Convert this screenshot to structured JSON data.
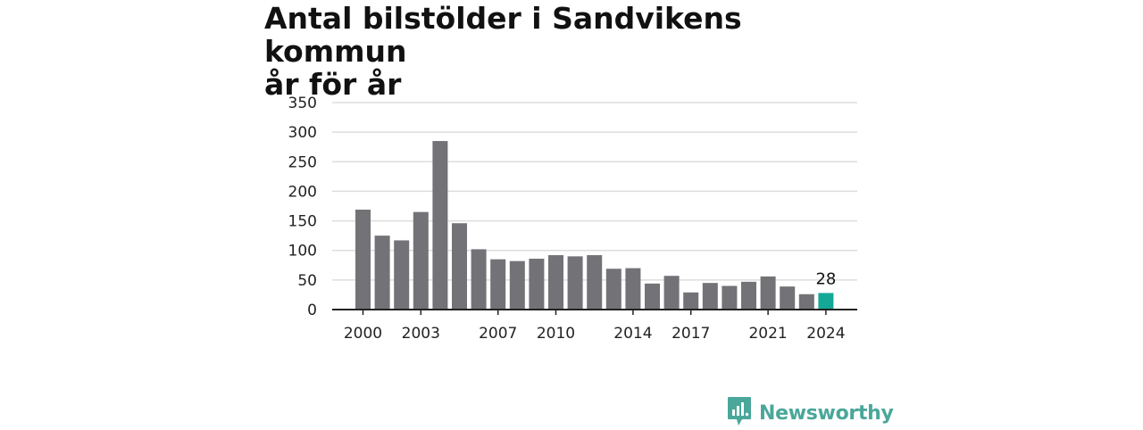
{
  "title_line1": "Antal bilstölder i Sandvikens kommun",
  "title_line2": "år för år",
  "brand": {
    "name": "Newsworthy",
    "icon": "newsworthy-logo-icon"
  },
  "colors": {
    "bar": "#737276",
    "highlight": "#14a897",
    "grid": "#dddddd",
    "axis": "#222222",
    "brand": "#4aa79a"
  },
  "chart_data": {
    "type": "bar",
    "title": "Antal bilstölder i Sandvikens kommun år för år",
    "xlabel": "",
    "ylabel": "",
    "categories": [
      "2000",
      "2001",
      "2002",
      "2003",
      "2004",
      "2005",
      "2006",
      "2007",
      "2008",
      "2009",
      "2010",
      "2011",
      "2012",
      "2013",
      "2014",
      "2015",
      "2016",
      "2017",
      "2018",
      "2019",
      "2020",
      "2021",
      "2022",
      "2023",
      "2024"
    ],
    "values": [
      169,
      125,
      117,
      165,
      285,
      146,
      102,
      85,
      82,
      86,
      92,
      90,
      92,
      69,
      70,
      44,
      57,
      29,
      45,
      40,
      47,
      56,
      39,
      26,
      28
    ],
    "highlight_index": 24,
    "data_labels": [
      {
        "category": "2024",
        "text": "28"
      }
    ],
    "x_tick_labels": [
      "2000",
      "2003",
      "2007",
      "2010",
      "2014",
      "2017",
      "2021",
      "2024"
    ],
    "y_ticks": [
      0,
      50,
      100,
      150,
      200,
      250,
      300,
      350
    ],
    "ylim": [
      0,
      350
    ],
    "grid": true,
    "legend": "none"
  }
}
